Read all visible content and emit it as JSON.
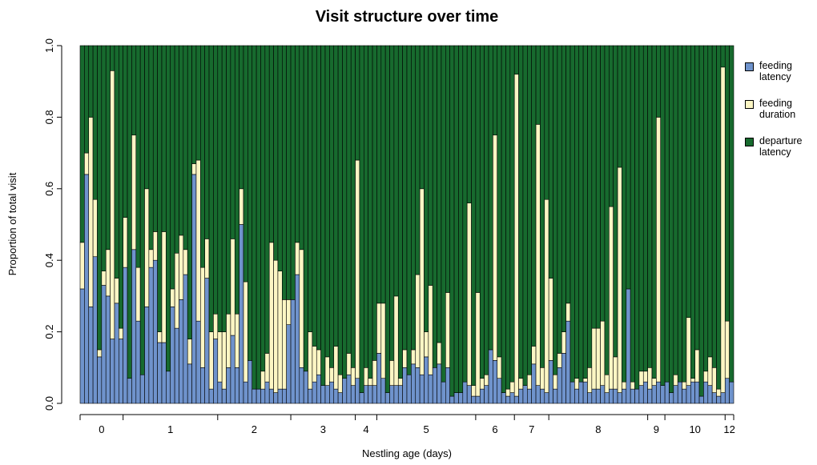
{
  "chart_data": {
    "type": "stacked_bar",
    "title": "Visit structure over time",
    "xlabel": "Nestling age (days)",
    "ylabel": "Proportion of total visit",
    "ylim": [
      0,
      1
    ],
    "yticks": [
      {
        "value": 0,
        "label": "0.0"
      },
      {
        "value": 0.2,
        "label": "0.2"
      },
      {
        "value": 0.4,
        "label": "0.4"
      },
      {
        "value": 0.6,
        "label": "0.6"
      },
      {
        "value": 0.8,
        "label": "0.8"
      },
      {
        "value": 1,
        "label": "1.0"
      }
    ],
    "categories": [
      "0",
      "0",
      "0",
      "0",
      "0",
      "0",
      "0",
      "0",
      "0",
      "0",
      "1",
      "1",
      "1",
      "1",
      "1",
      "1",
      "1",
      "1",
      "1",
      "1",
      "1",
      "1",
      "1",
      "1",
      "1",
      "1",
      "1",
      "1",
      "1",
      "1",
      "1",
      "1",
      "2",
      "2",
      "2",
      "2",
      "2",
      "2",
      "2",
      "2",
      "2",
      "2",
      "2",
      "2",
      "2",
      "2",
      "2",
      "2",
      "2",
      "3",
      "3",
      "3",
      "3",
      "3",
      "3",
      "3",
      "3",
      "3",
      "3",
      "3",
      "3",
      "3",
      "3",
      "3",
      "4",
      "4",
      "4",
      "4",
      "4",
      "5",
      "5",
      "5",
      "5",
      "5",
      "5",
      "5",
      "5",
      "5",
      "5",
      "5",
      "5",
      "5",
      "5",
      "5",
      "5",
      "5",
      "5",
      "5",
      "5",
      "5",
      "5",
      "5",
      "6",
      "6",
      "6",
      "6",
      "6",
      "6",
      "6",
      "6",
      "6",
      "7",
      "7",
      "7",
      "7",
      "7",
      "7",
      "7",
      "7",
      "8",
      "8",
      "8",
      "8",
      "8",
      "8",
      "8",
      "8",
      "8",
      "8",
      "8",
      "8",
      "8",
      "8",
      "8",
      "8",
      "8",
      "8",
      "8",
      "8",
      "8",
      "8",
      "8",
      "9",
      "9",
      "9",
      "9",
      "10",
      "10",
      "10",
      "10",
      "10",
      "10",
      "10",
      "10",
      "10",
      "10",
      "10",
      "10",
      "10",
      "10",
      "12",
      "12"
    ],
    "series": [
      {
        "name": "feeding latency",
        "color": "#6f93cc",
        "values": [
          0.32,
          0.64,
          0.27,
          0.41,
          0.13,
          0.33,
          0.3,
          0.18,
          0.28,
          0.18,
          0.38,
          0.07,
          0.43,
          0.23,
          0.08,
          0.27,
          0.38,
          0.4,
          0.17,
          0.17,
          0.09,
          0.27,
          0.21,
          0.29,
          0.36,
          0.11,
          0.64,
          0.23,
          0.1,
          0.35,
          0.04,
          0.18,
          0.06,
          0.04,
          0.1,
          0.19,
          0.1,
          0.5,
          0.06,
          0.12,
          0.04,
          0.04,
          0.04,
          0.06,
          0.04,
          0.03,
          0.04,
          0.04,
          0.22,
          0.29,
          0.36,
          0.1,
          0.09,
          0.04,
          0.06,
          0.08,
          0.05,
          0.05,
          0.06,
          0.04,
          0.03,
          0.07,
          0.08,
          0.05,
          0.07,
          0.03,
          0.05,
          0.05,
          0.05,
          0.14,
          0.07,
          0.03,
          0.05,
          0.05,
          0.05,
          0.1,
          0.08,
          0.11,
          0.1,
          0.08,
          0.13,
          0.08,
          0.1,
          0.11,
          0.06,
          0.1,
          0.02,
          0.03,
          0.03,
          0.06,
          0.05,
          0.02,
          0.02,
          0.04,
          0.05,
          0.15,
          0.12,
          0.07,
          0.03,
          0.02,
          0.03,
          0.02,
          0.04,
          0.05,
          0.04,
          0.11,
          0.05,
          0.04,
          0.03,
          0.12,
          0.04,
          0.1,
          0.14,
          0.23,
          0.06,
          0.04,
          0.06,
          0.06,
          0.03,
          0.04,
          0.04,
          0.05,
          0.03,
          0.04,
          0.04,
          0.03,
          0.04,
          0.32,
          0.04,
          0.04,
          0.05,
          0.06,
          0.04,
          0.05,
          0.06,
          0.05,
          0.06,
          0.03,
          0.05,
          0.06,
          0.04,
          0.05,
          0.06,
          0.06,
          0.02,
          0.06,
          0.05,
          0.03,
          0.02,
          0.03,
          0.07,
          0.06
        ]
      },
      {
        "name": "feeding duration",
        "color": "#fcf6c4",
        "values": [
          0.13,
          0.06,
          0.53,
          0.16,
          0.02,
          0.04,
          0.13,
          0.75,
          0.07,
          0.03,
          0.14,
          0.0,
          0.32,
          0.15,
          0.0,
          0.33,
          0.05,
          0.08,
          0.03,
          0.31,
          0.0,
          0.05,
          0.21,
          0.18,
          0.07,
          0.07,
          0.03,
          0.45,
          0.28,
          0.11,
          0.16,
          0.07,
          0.14,
          0.16,
          0.15,
          0.27,
          0.15,
          0.1,
          0.28,
          0.0,
          0.0,
          0.0,
          0.05,
          0.08,
          0.41,
          0.37,
          0.33,
          0.25,
          0.07,
          0.0,
          0.09,
          0.33,
          0.0,
          0.16,
          0.1,
          0.07,
          0.0,
          0.08,
          0.04,
          0.12,
          0.05,
          0.0,
          0.06,
          0.05,
          0.61,
          0.0,
          0.05,
          0.02,
          0.07,
          0.14,
          0.21,
          0.0,
          0.07,
          0.25,
          0.02,
          0.05,
          0.0,
          0.04,
          0.26,
          0.52,
          0.07,
          0.25,
          0.0,
          0.06,
          0.0,
          0.21,
          0.0,
          0.0,
          0.0,
          0.0,
          0.51,
          0.03,
          0.29,
          0.03,
          0.03,
          0.0,
          0.63,
          0.06,
          0.0,
          0.02,
          0.03,
          0.9,
          0.03,
          0.0,
          0.04,
          0.05,
          0.73,
          0.06,
          0.54,
          0.23,
          0.04,
          0.04,
          0.06,
          0.05,
          0.0,
          0.03,
          0.0,
          0.01,
          0.07,
          0.17,
          0.17,
          0.18,
          0.05,
          0.51,
          0.09,
          0.63,
          0.02,
          0.0,
          0.02,
          0.0,
          0.04,
          0.03,
          0.06,
          0.02,
          0.74,
          0.0,
          0.0,
          0.0,
          0.03,
          0.0,
          0.02,
          0.19,
          0.01,
          0.09,
          0.0,
          0.03,
          0.08,
          0.07,
          0.02,
          0.91,
          0.16,
          0.0
        ]
      },
      {
        "name": "departure latency",
        "color": "#176a2e",
        "values": [
          0.55,
          0.3,
          0.2,
          0.43,
          0.85,
          0.63,
          0.57,
          0.07,
          0.65,
          0.79,
          0.48,
          0.93,
          0.25,
          0.62,
          0.92,
          0.4,
          0.57,
          0.52,
          0.8,
          0.52,
          0.91,
          0.68,
          0.58,
          0.53,
          0.57,
          0.82,
          0.33,
          0.32,
          0.62,
          0.54,
          0.8,
          0.75,
          0.8,
          0.8,
          0.75,
          0.54,
          0.75,
          0.4,
          0.66,
          0.88,
          0.96,
          0.96,
          0.91,
          0.86,
          0.55,
          0.6,
          0.63,
          0.71,
          0.71,
          0.71,
          0.55,
          0.57,
          0.91,
          0.8,
          0.84,
          0.85,
          0.95,
          0.87,
          0.9,
          0.84,
          0.92,
          0.93,
          0.86,
          0.9,
          0.32,
          0.97,
          0.9,
          0.93,
          0.88,
          0.72,
          0.72,
          0.97,
          0.88,
          0.7,
          0.93,
          0.85,
          0.92,
          0.85,
          0.64,
          0.4,
          0.8,
          0.67,
          0.9,
          0.83,
          0.94,
          0.69,
          0.98,
          0.97,
          0.97,
          0.94,
          0.44,
          0.95,
          0.69,
          0.93,
          0.92,
          0.85,
          0.25,
          0.87,
          0.97,
          0.96,
          0.94,
          0.08,
          0.93,
          0.95,
          0.92,
          0.84,
          0.22,
          0.9,
          0.43,
          0.65,
          0.92,
          0.86,
          0.8,
          0.72,
          0.94,
          0.93,
          0.94,
          0.93,
          0.9,
          0.79,
          0.79,
          0.77,
          0.92,
          0.45,
          0.87,
          0.34,
          0.94,
          0.68,
          0.94,
          0.96,
          0.91,
          0.91,
          0.9,
          0.93,
          0.2,
          0.95,
          0.94,
          0.97,
          0.92,
          0.94,
          0.94,
          0.76,
          0.93,
          0.85,
          0.98,
          0.91,
          0.87,
          0.9,
          0.96,
          0.06,
          0.77,
          0.94
        ]
      }
    ],
    "legend": "right"
  }
}
